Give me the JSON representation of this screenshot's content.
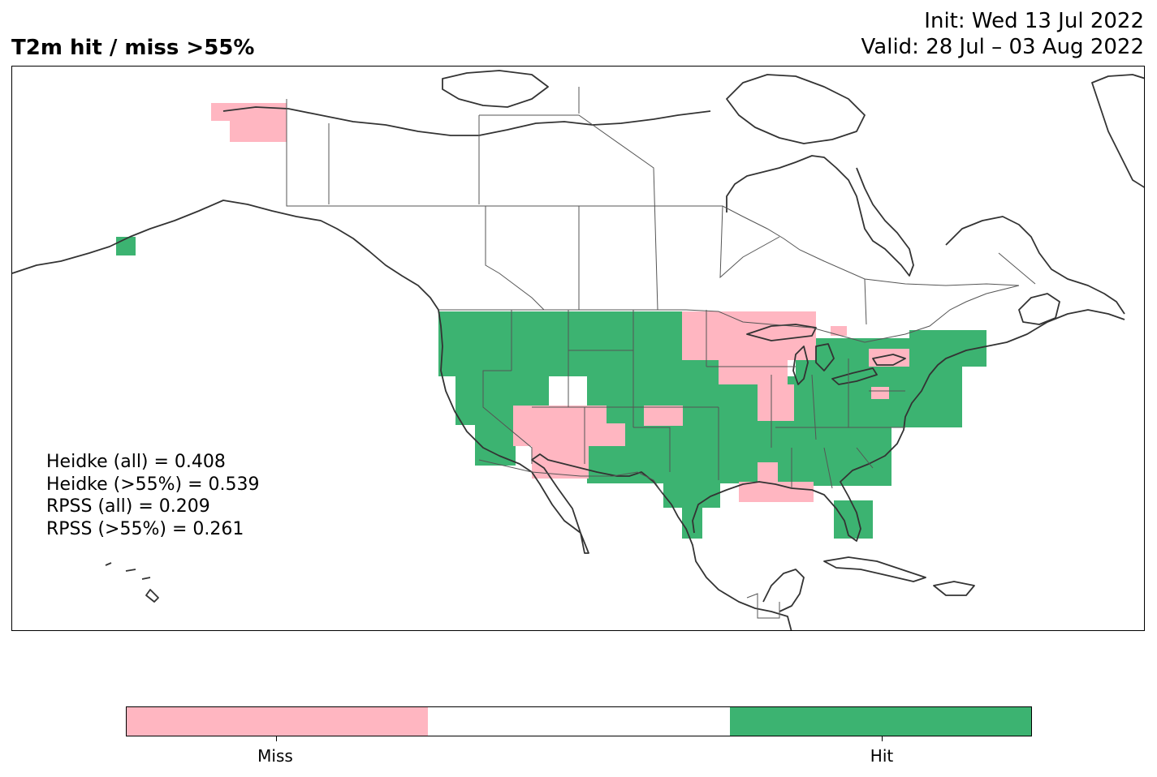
{
  "title": "T2m hit / miss  >55%",
  "init_line": "Init: Wed 13 Jul 2022",
  "valid_line": "Valid: 28 Jul – 03 Aug 2022",
  "scores": [
    "Heidke (all) = 0.408",
    "Heidke (>55%) = 0.539",
    "RPSS (all) = 0.209",
    "RPSS (>55%) = 0.261"
  ],
  "colors": {
    "miss": "#ffb6c1",
    "neutral": "#ffffff",
    "hit": "#3cb371",
    "coast": "#333333"
  },
  "colorbar": {
    "categories": [
      "Miss",
      "",
      "Hit"
    ],
    "tick_labels": [
      "Miss",
      "Hit"
    ]
  },
  "map": {
    "projection": "plate-carree",
    "region": "North America",
    "shaded_regions": [
      {
        "category": "Miss",
        "area": "northern Alaska"
      },
      {
        "category": "Hit",
        "area": "Alaska Peninsula"
      },
      {
        "category": "Hit",
        "area": "Western US"
      },
      {
        "category": "Hit",
        "area": "Texas and South-Central US"
      },
      {
        "category": "Hit",
        "area": "Southeast US and Florida"
      },
      {
        "category": "Hit",
        "area": "Ohio Valley and Northeast US"
      },
      {
        "category": "Miss",
        "area": "Upper Midwest"
      },
      {
        "category": "Miss",
        "area": "Arizona and New Mexico"
      },
      {
        "category": "Miss",
        "area": "Gulf Coast"
      },
      {
        "category": "Miss",
        "area": "Lower Great Lakes"
      }
    ]
  }
}
